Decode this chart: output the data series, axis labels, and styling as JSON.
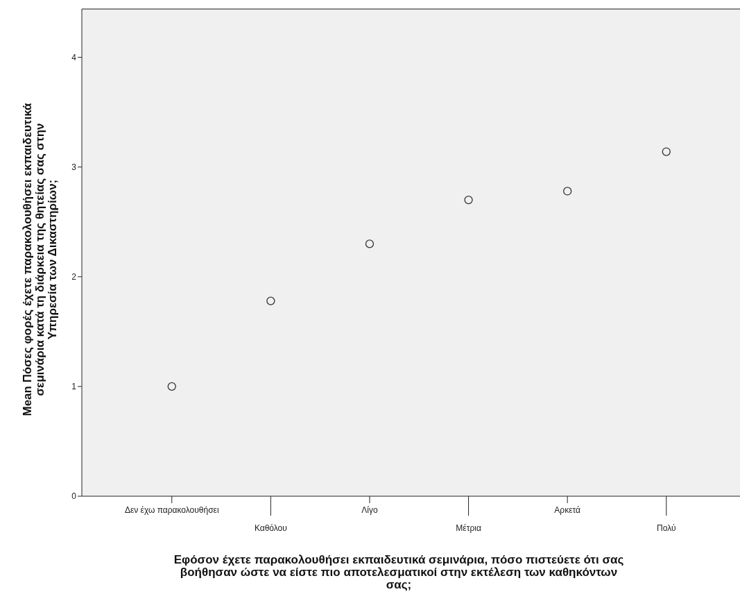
{
  "chart_data": {
    "type": "scatter",
    "xlabel": "Εφόσον έχετε παρακολουθήσει εκπαιδευτικά σεμινάρια, πόσο πιστεύετε ότι σας βοήθησαν ώστε να είστε πιο αποτελεσματικοί στην εκτέλεση των καθηκόντων σας;",
    "ylabel": "Mean  Πόσες φορές έχετε παρακολουθήσει εκπαιδευτικά σεμινάρια κατά τη διάρκεια της θητείας σας στην Υπηρεσία των Δικαστηρίων;",
    "categories": [
      "Δεν έχω παρακολουθήσει",
      "Καθόλου",
      "Λίγο",
      "Μέτρια",
      "Αρκετά",
      "Πολύ"
    ],
    "values": [
      1.0,
      1.78,
      2.3,
      2.7,
      2.78,
      3.14
    ],
    "color": "#333333",
    "marker": "circle",
    "grid": false,
    "ylim": [
      0,
      4.44
    ],
    "yticks": [
      0,
      1,
      2,
      3,
      4
    ]
  }
}
